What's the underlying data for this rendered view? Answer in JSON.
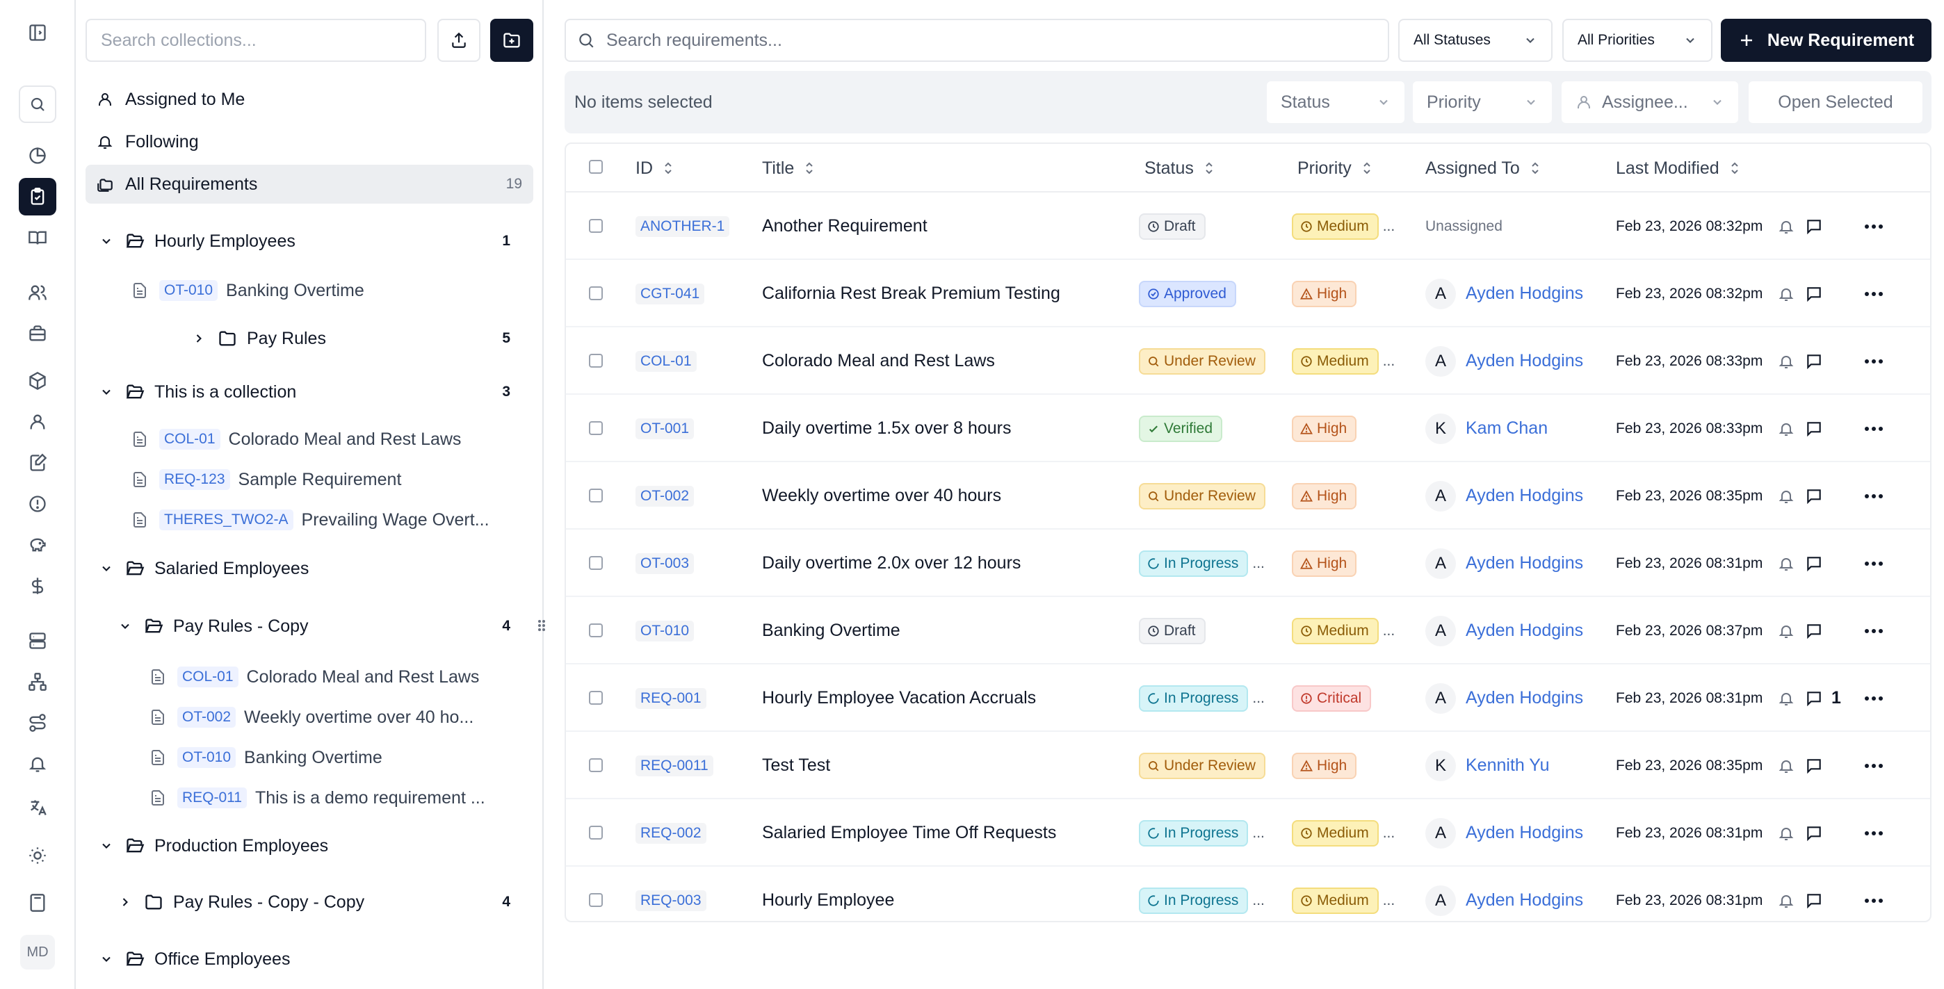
{
  "rail": {
    "avatar_initials": "MD",
    "icons": [
      "sidebar-toggle-icon",
      "search-icon",
      "pie-chart-icon",
      "clipboard-check-icon",
      "book-open-icon",
      "users-icon",
      "briefcase-icon",
      "package-icon",
      "user-icon",
      "file-edit-icon",
      "alert-circle-icon",
      "piggy-bank-icon",
      "dollar-icon",
      "server-icon",
      "network-icon",
      "route-icon",
      "bell-icon",
      "languages-icon",
      "sun-icon",
      "calculator-icon"
    ]
  },
  "sidebar": {
    "search_placeholder": "Search collections...",
    "nav": [
      {
        "label": "Assigned to Me",
        "icon": "user-icon"
      },
      {
        "label": "Following",
        "icon": "bell-icon"
      },
      {
        "label": "All Requirements",
        "icon": "collection-icon",
        "count": "19"
      }
    ],
    "tree": {
      "hourly": {
        "label": "Hourly Employees",
        "count": "1",
        "items": [
          {
            "tag": "OT-010",
            "text": "Banking Overtime"
          }
        ],
        "pay_rules": {
          "label": "Pay Rules",
          "count": "5"
        }
      },
      "collection": {
        "label": "This is a collection",
        "count": "3",
        "items": [
          {
            "tag": "COL-01",
            "text": "Colorado Meal and Rest Laws"
          },
          {
            "tag": "REQ-123",
            "text": "Sample Requirement"
          },
          {
            "tag": "THERES_TWO2-A",
            "text": "Prevailing Wage Overt..."
          }
        ]
      },
      "salaried": {
        "label": "Salaried Employees",
        "pay_rules_copy": {
          "label": "Pay Rules - Copy",
          "count": "4",
          "items": [
            {
              "tag": "COL-01",
              "text": "Colorado Meal and Rest Laws"
            },
            {
              "tag": "OT-002",
              "text": "Weekly overtime over 40 ho..."
            },
            {
              "tag": "OT-010",
              "text": "Banking Overtime"
            },
            {
              "tag": "REQ-011",
              "text": "This is a demo requirement ..."
            }
          ]
        }
      },
      "production": {
        "label": "Production Employees",
        "pay_rules_copy_copy": {
          "label": "Pay Rules - Copy - Copy",
          "count": "4"
        }
      },
      "office": {
        "label": "Office Employees"
      }
    }
  },
  "toolbar": {
    "search_placeholder": "Search requirements...",
    "status_filter": "All Statuses",
    "priority_filter": "All Priorities",
    "new_button": "New Requirement"
  },
  "bulk": {
    "none_selected": "No items selected",
    "status": "Status",
    "priority": "Priority",
    "assignee": "Assignee...",
    "open_selected": "Open Selected"
  },
  "table": {
    "columns": {
      "id": "ID",
      "title": "Title",
      "status": "Status",
      "priority": "Priority",
      "assigned": "Assigned To",
      "modified": "Last Modified"
    },
    "rows": [
      {
        "id": "ANOTHER-1",
        "title": "Another Requirement",
        "status": "Draft",
        "status_kind": "draft",
        "priority": "Medium",
        "priority_kind": "medium",
        "prio_ell": "...",
        "status_ell": "",
        "assignee": "Unassigned",
        "initial": "",
        "modified": "Feb 23, 2026 08:32pm",
        "comments": ""
      },
      {
        "id": "CGT-041",
        "title": "California Rest Break Premium Testing",
        "status": "Approved",
        "status_kind": "approved",
        "priority": "High",
        "priority_kind": "high",
        "prio_ell": "",
        "status_ell": "",
        "assignee": "Ayden Hodgins",
        "initial": "A",
        "modified": "Feb 23, 2026 08:32pm",
        "comments": ""
      },
      {
        "id": "COL-01",
        "title": "Colorado Meal and Rest Laws",
        "status": "Under Review",
        "status_kind": "review",
        "priority": "Medium",
        "priority_kind": "medium",
        "prio_ell": "...",
        "status_ell": "",
        "assignee": "Ayden Hodgins",
        "initial": "A",
        "modified": "Feb 23, 2026 08:33pm",
        "comments": ""
      },
      {
        "id": "OT-001",
        "title": "Daily overtime 1.5x over 8 hours",
        "status": "Verified",
        "status_kind": "verified",
        "priority": "High",
        "priority_kind": "high",
        "prio_ell": "",
        "status_ell": "",
        "assignee": "Kam Chan",
        "initial": "K",
        "modified": "Feb 23, 2026 08:33pm",
        "comments": ""
      },
      {
        "id": "OT-002",
        "title": "Weekly overtime over 40 hours",
        "status": "Under Review",
        "status_kind": "review",
        "priority": "High",
        "priority_kind": "high",
        "prio_ell": "",
        "status_ell": "",
        "assignee": "Ayden Hodgins",
        "initial": "A",
        "modified": "Feb 23, 2026 08:35pm",
        "comments": ""
      },
      {
        "id": "OT-003",
        "title": "Daily overtime 2.0x over 12 hours",
        "status": "In Progress",
        "status_kind": "progress",
        "priority": "High",
        "priority_kind": "high",
        "prio_ell": "",
        "status_ell": "...",
        "assignee": "Ayden Hodgins",
        "initial": "A",
        "modified": "Feb 23, 2026 08:31pm",
        "comments": ""
      },
      {
        "id": "OT-010",
        "title": "Banking Overtime",
        "status": "Draft",
        "status_kind": "draft",
        "priority": "Medium",
        "priority_kind": "medium",
        "prio_ell": "...",
        "status_ell": "",
        "assignee": "Ayden Hodgins",
        "initial": "A",
        "modified": "Feb 23, 2026 08:37pm",
        "comments": ""
      },
      {
        "id": "REQ-001",
        "title": "Hourly Employee Vacation Accruals",
        "status": "In Progress",
        "status_kind": "progress",
        "priority": "Critical",
        "priority_kind": "critical",
        "prio_ell": "",
        "status_ell": "...",
        "assignee": "Ayden Hodgins",
        "initial": "A",
        "modified": "Feb 23, 2026 08:31pm",
        "comments": "1"
      },
      {
        "id": "REQ-0011",
        "title": "Test Test",
        "status": "Under Review",
        "status_kind": "review",
        "priority": "High",
        "priority_kind": "high",
        "prio_ell": "",
        "status_ell": "",
        "assignee": "Kennith Yu",
        "initial": "K",
        "modified": "Feb 23, 2026 08:35pm",
        "comments": ""
      },
      {
        "id": "REQ-002",
        "title": "Salaried Employee Time Off Requests",
        "status": "In Progress",
        "status_kind": "progress",
        "priority": "Medium",
        "priority_kind": "medium",
        "prio_ell": "...",
        "status_ell": "...",
        "assignee": "Ayden Hodgins",
        "initial": "A",
        "modified": "Feb 23, 2026 08:31pm",
        "comments": ""
      },
      {
        "id": "REQ-003",
        "title": "Hourly Employee",
        "status": "In Progress",
        "status_kind": "progress",
        "priority": "Medium",
        "priority_kind": "medium",
        "prio_ell": "...",
        "status_ell": "...",
        "assignee": "Ayden Hodgins",
        "initial": "A",
        "modified": "Feb 23, 2026 08:31pm",
        "comments": ""
      }
    ]
  },
  "colors": {
    "accent": "#0f172a",
    "link": "#3b6fd8",
    "draft": "#f3f4f6",
    "approved": "#dbe6ff",
    "review": "#fdeec6",
    "verified": "#e3f6e4",
    "progress": "#d7f4f8",
    "medium": "#fdf1b8",
    "high": "#fde8d6",
    "critical": "#fde2e2"
  }
}
